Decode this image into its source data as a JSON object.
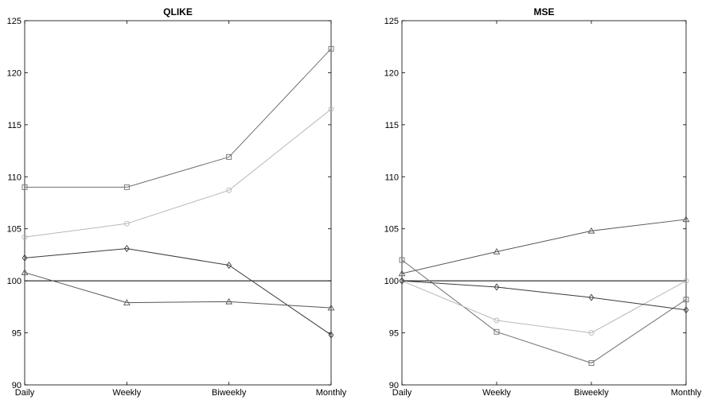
{
  "chart_data": [
    {
      "type": "line",
      "title": "QLIKE",
      "categories": [
        "Daily",
        "Weekly",
        "Biweekly",
        "Monthly"
      ],
      "ylim": [
        90,
        125
      ],
      "yticks": [
        "90",
        "95",
        "100",
        "105",
        "110",
        "115",
        "120",
        "125"
      ],
      "reference_line": 100,
      "grid": false,
      "series": [
        {
          "marker": "square",
          "color": "#707070",
          "values": [
            109.0,
            109.0,
            111.9,
            122.3
          ]
        },
        {
          "marker": "circle",
          "color": "#b8b8b8",
          "values": [
            104.2,
            105.5,
            108.7,
            116.5
          ]
        },
        {
          "marker": "diamond",
          "color": "#3a3a3a",
          "values": [
            102.2,
            103.1,
            101.5,
            94.8
          ]
        },
        {
          "marker": "triangle",
          "color": "#555555",
          "values": [
            100.8,
            97.9,
            98.0,
            97.4
          ]
        }
      ]
    },
    {
      "type": "line",
      "title": "MSE",
      "categories": [
        "Daily",
        "Weekly",
        "Biweekly",
        "Monthly"
      ],
      "ylim": [
        90,
        125
      ],
      "yticks": [
        "90",
        "95",
        "100",
        "105",
        "110",
        "115",
        "120",
        "125"
      ],
      "reference_line": 100,
      "grid": false,
      "series": [
        {
          "marker": "square",
          "color": "#707070",
          "values": [
            102.0,
            95.1,
            92.1,
            98.2
          ]
        },
        {
          "marker": "circle",
          "color": "#b8b8b8",
          "values": [
            100.0,
            96.2,
            95.0,
            100.0
          ]
        },
        {
          "marker": "diamond",
          "color": "#3a3a3a",
          "values": [
            100.0,
            99.4,
            98.4,
            97.2
          ]
        },
        {
          "marker": "triangle",
          "color": "#555555",
          "values": [
            100.7,
            102.8,
            104.8,
            105.9
          ]
        }
      ]
    }
  ]
}
